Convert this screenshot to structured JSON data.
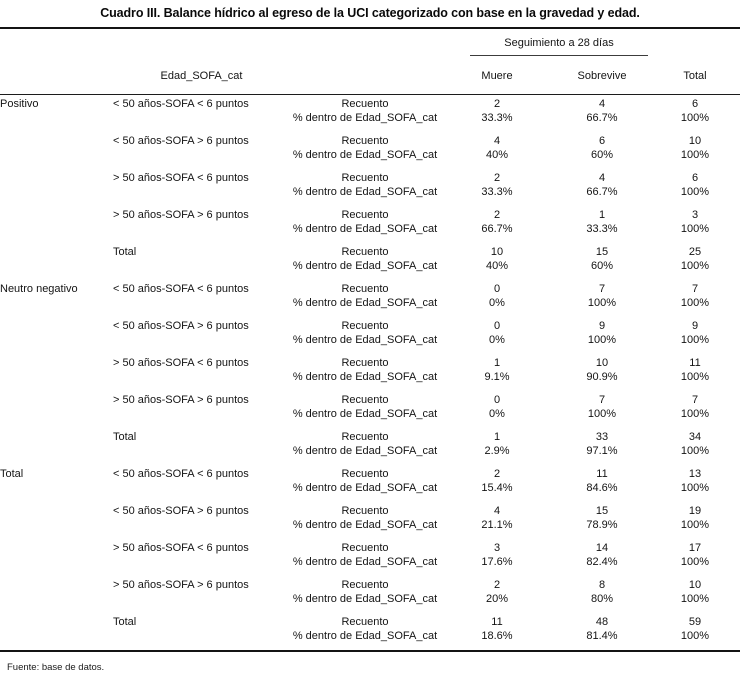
{
  "chart_data": {
    "type": "table",
    "title": "Cuadro III. Balance hídrico al egreso de la UCI categorizado con base en la gravedad y edad.",
    "column_group": "Seguimiento a 28 días",
    "row_variable": "Edad_SOFA_cat",
    "columns": [
      "Muere",
      "Sobrevive",
      "Total"
    ],
    "stat_rows": [
      "Recuento",
      "% dentro de Edad_SOFA_cat"
    ],
    "groups": [
      {
        "label": "Positivo",
        "rows": [
          {
            "category": "< 50 años-SOFA < 6 puntos",
            "recuento": [
              "2",
              "4",
              "6"
            ],
            "pct": [
              "33.3%",
              "66.7%",
              "100%"
            ]
          },
          {
            "category": "< 50 años-SOFA > 6 puntos",
            "recuento": [
              "4",
              "6",
              "10"
            ],
            "pct": [
              "40%",
              "60%",
              "100%"
            ]
          },
          {
            "category": "> 50 años-SOFA < 6 puntos",
            "recuento": [
              "2",
              "4",
              "6"
            ],
            "pct": [
              "33.3%",
              "66.7%",
              "100%"
            ]
          },
          {
            "category": "> 50 años-SOFA > 6 puntos",
            "recuento": [
              "2",
              "1",
              "3"
            ],
            "pct": [
              "66.7%",
              "33.3%",
              "100%"
            ]
          },
          {
            "category": "Total",
            "recuento": [
              "10",
              "15",
              "25"
            ],
            "pct": [
              "40%",
              "60%",
              "100%"
            ]
          }
        ]
      },
      {
        "label": "Neutro negativo",
        "rows": [
          {
            "category": "< 50 años-SOFA < 6 puntos",
            "recuento": [
              "0",
              "7",
              "7"
            ],
            "pct": [
              "0%",
              "100%",
              "100%"
            ]
          },
          {
            "category": "< 50 años-SOFA > 6 puntos",
            "recuento": [
              "0",
              "9",
              "9"
            ],
            "pct": [
              "0%",
              "100%",
              "100%"
            ]
          },
          {
            "category": "> 50 años-SOFA < 6 puntos",
            "recuento": [
              "1",
              "10",
              "11"
            ],
            "pct": [
              "9.1%",
              "90.9%",
              "100%"
            ]
          },
          {
            "category": "> 50 años-SOFA > 6 puntos",
            "recuento": [
              "0",
              "7",
              "7"
            ],
            "pct": [
              "0%",
              "100%",
              "100%"
            ]
          },
          {
            "category": "Total",
            "recuento": [
              "1",
              "33",
              "34"
            ],
            "pct": [
              "2.9%",
              "97.1%",
              "100%"
            ]
          }
        ]
      },
      {
        "label": "Total",
        "rows": [
          {
            "category": "< 50 años-SOFA < 6 puntos",
            "recuento": [
              "2",
              "11",
              "13"
            ],
            "pct": [
              "15.4%",
              "84.6%",
              "100%"
            ]
          },
          {
            "category": "< 50 años-SOFA > 6 puntos",
            "recuento": [
              "4",
              "15",
              "19"
            ],
            "pct": [
              "21.1%",
              "78.9%",
              "100%"
            ]
          },
          {
            "category": "> 50 años-SOFA < 6 puntos",
            "recuento": [
              "3",
              "14",
              "17"
            ],
            "pct": [
              "17.6%",
              "82.4%",
              "100%"
            ]
          },
          {
            "category": "> 50 años-SOFA > 6 puntos",
            "recuento": [
              "2",
              "8",
              "10"
            ],
            "pct": [
              "20%",
              "80%",
              "100%"
            ]
          },
          {
            "category": "Total",
            "recuento": [
              "11",
              "48",
              "59"
            ],
            "pct": [
              "18.6%",
              "81.4%",
              "100%"
            ]
          }
        ]
      }
    ],
    "footer": "Fuente: base de datos."
  }
}
